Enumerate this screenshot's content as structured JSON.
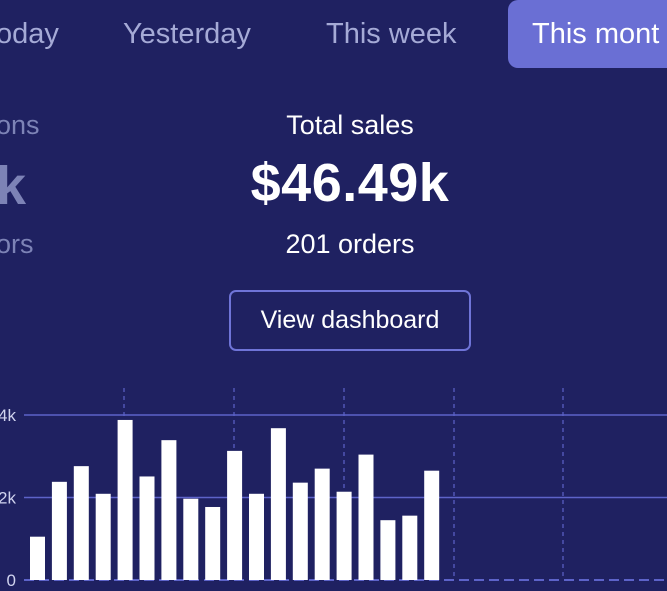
{
  "tabs": {
    "today": "oday",
    "yesterday": "Yesterday",
    "this_week": "This week",
    "this_month": "This mont"
  },
  "left_panel": {
    "label": "ons",
    "value": "k",
    "sub": "ors"
  },
  "sales": {
    "label": "Total sales",
    "value": "$46.49k",
    "orders": "201 orders"
  },
  "button": {
    "label": "View dashboard"
  },
  "colors": {
    "background": "#1f2161",
    "active_tab": "#6a6fd4",
    "inactive_tab_text": "#a5aad6",
    "button_border": "#6f74d8",
    "bar": "#ffffff",
    "gridline": "#5d63c9"
  },
  "chart_data": {
    "type": "bar",
    "ylim": [
      0,
      4000
    ],
    "yticks": [
      "0",
      "2k",
      "4k"
    ],
    "grid": true,
    "values": [
      1050,
      2380,
      2760,
      2090,
      3880,
      2510,
      3390,
      1970,
      1770,
      3130,
      2090,
      3680,
      2360,
      2700,
      2140,
      3040,
      1450,
      1560,
      2650
    ]
  }
}
